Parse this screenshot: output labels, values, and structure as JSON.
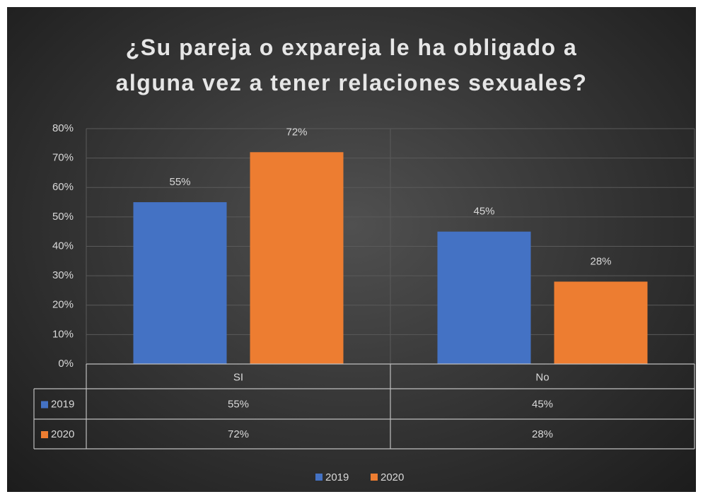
{
  "chart_data": {
    "type": "bar",
    "title": "¿Su pareja o expareja le ha obligado a alguna vez a tener relaciones sexuales?",
    "categories": [
      "SI",
      "No"
    ],
    "series": [
      {
        "name": "2019",
        "color": "#4472c4",
        "values": [
          55,
          45
        ],
        "value_labels": [
          "55%",
          "45%"
        ]
      },
      {
        "name": "2020",
        "color": "#ed7d31",
        "values": [
          72,
          28
        ],
        "value_labels": [
          "72%",
          "28%"
        ]
      }
    ],
    "ylim": [
      0,
      80
    ],
    "yticks": [
      {
        "value": 0,
        "label": "0%"
      },
      {
        "value": 10,
        "label": "10%"
      },
      {
        "value": 20,
        "label": "20%"
      },
      {
        "value": 30,
        "label": "30%"
      },
      {
        "value": 40,
        "label": "40%"
      },
      {
        "value": 50,
        "label": "50%"
      },
      {
        "value": 60,
        "label": "60%"
      },
      {
        "value": 70,
        "label": "70%"
      },
      {
        "value": 80,
        "label": "80%"
      }
    ],
    "grid": true,
    "legend": "bottom",
    "data_table": true
  }
}
